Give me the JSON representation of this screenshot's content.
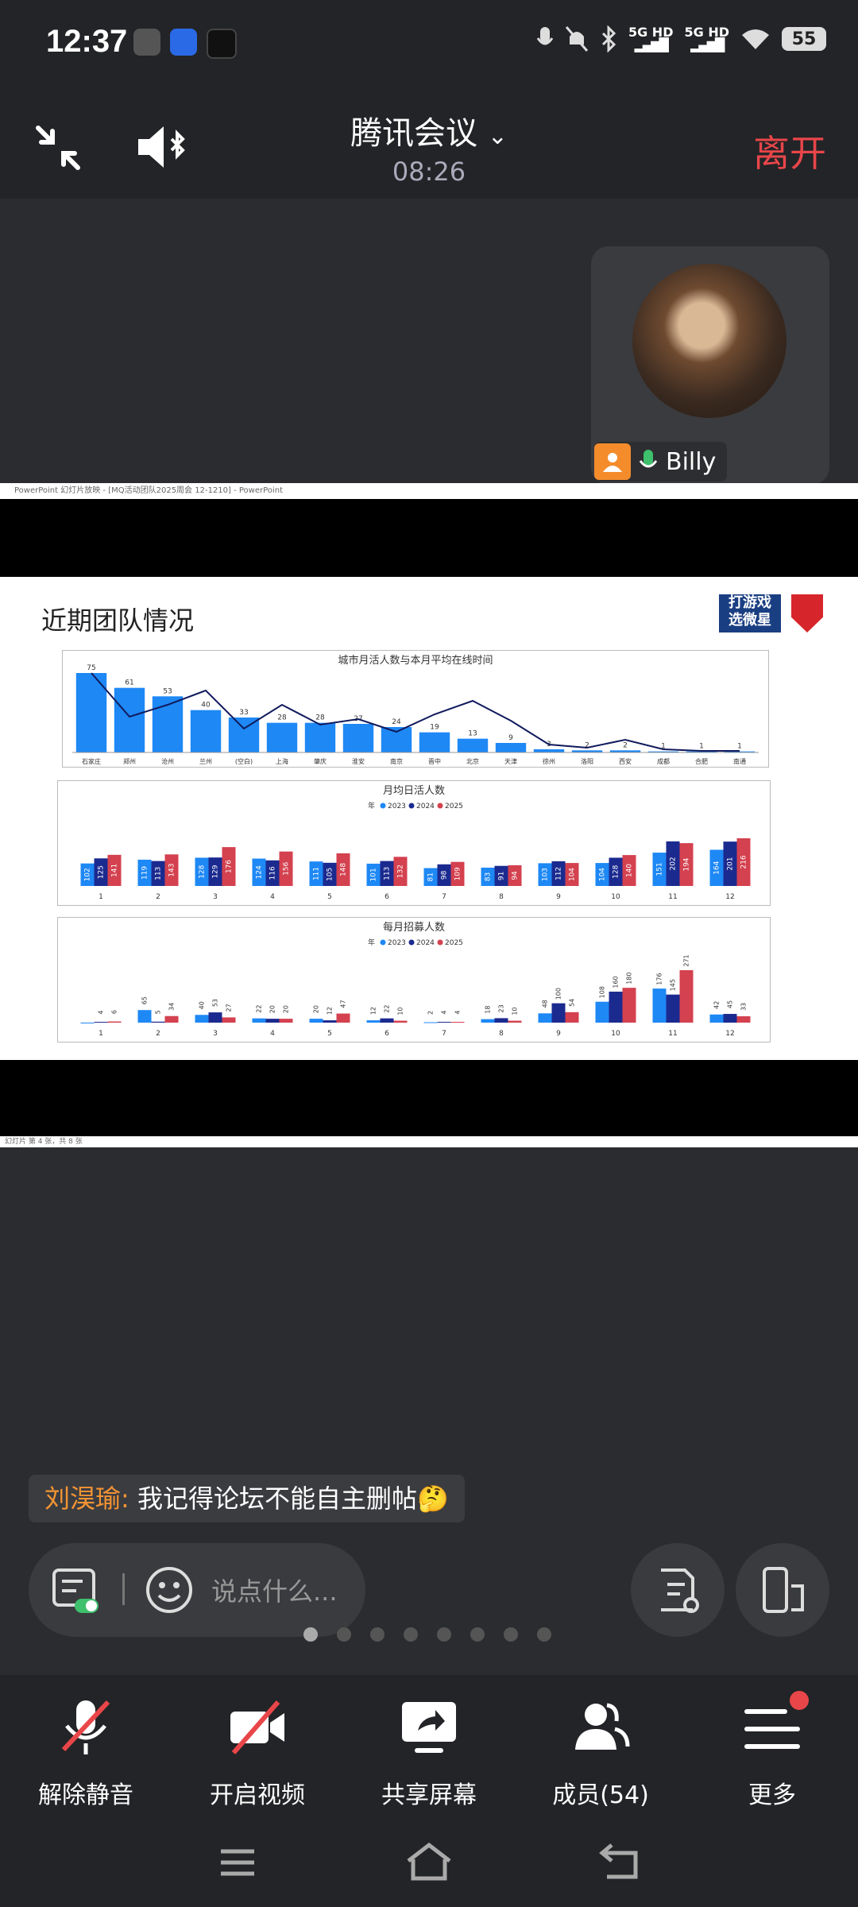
{
  "status_bar": {
    "time": "12:37",
    "network_1": "5G HD",
    "network_2": "5G HD",
    "battery": "55"
  },
  "header": {
    "meeting_title": "腾讯会议",
    "elapsed": "08:26",
    "leave_label": "离开"
  },
  "participant_tile": {
    "name": "Billy"
  },
  "shared_screen": {
    "window_title": "PowerPoint 幻灯片放映 - [MQ活动团队2025周会 12-1210] - PowerPoint",
    "status_text": "幻灯片 第 4 张，共 8 张",
    "slide": {
      "title": "近期团队情况",
      "logo_text_1": "打游戏",
      "logo_text_2": "选微星"
    }
  },
  "chart_data": [
    {
      "type": "bar",
      "title": "城市月活人数与本月平均在线时间",
      "categories": [
        "石家庄",
        "郑州",
        "沧州",
        "兰州",
        "(空白)",
        "上海",
        "肇庆",
        "淮安",
        "南京",
        "晋中",
        "北京",
        "天津",
        "徐州",
        "洛阳",
        "西安",
        "成都",
        "合肥",
        "南通"
      ],
      "series": [
        {
          "values": [
            75,
            61,
            53,
            40,
            33,
            28,
            28,
            27,
            24,
            19,
            13,
            9,
            3,
            2,
            2,
            1,
            1,
            1
          ]
        }
      ],
      "line_overlay": true
    },
    {
      "type": "bar",
      "title": "月均日活人数",
      "legend_label": "年",
      "categories": [
        "1",
        "2",
        "3",
        "4",
        "5",
        "6",
        "7",
        "8",
        "9",
        "10",
        "11",
        "12"
      ],
      "series": [
        {
          "name": "2023",
          "values": [
            102,
            119,
            128,
            124,
            111,
            101,
            81,
            83,
            103,
            104,
            151,
            164
          ]
        },
        {
          "name": "2024",
          "values": [
            125,
            113,
            129,
            116,
            105,
            113,
            98,
            91,
            112,
            128,
            202,
            201
          ]
        },
        {
          "name": "2025",
          "values": [
            141,
            143,
            176,
            156,
            148,
            132,
            109,
            94,
            104,
            140,
            194,
            216
          ]
        }
      ]
    },
    {
      "type": "bar",
      "title": "每月招募人数",
      "legend_label": "年",
      "categories": [
        "1",
        "2",
        "3",
        "4",
        "5",
        "6",
        "7",
        "8",
        "9",
        "10",
        "11",
        "12"
      ],
      "series": [
        {
          "name": "2023",
          "values": [
            0,
            65,
            40,
            22,
            20,
            12,
            2,
            18,
            48,
            108,
            176,
            42
          ]
        },
        {
          "name": "2024",
          "values": [
            4,
            5,
            53,
            20,
            12,
            22,
            4,
            23,
            100,
            160,
            145,
            45
          ]
        },
        {
          "name": "2025",
          "values": [
            6,
            34,
            27,
            20,
            47,
            10,
            4,
            10,
            54,
            180,
            271,
            33
          ]
        }
      ]
    }
  ],
  "chat": {
    "sender": "刘淏瑜:",
    "message": "我记得论坛不能自主删帖🤔"
  },
  "input": {
    "placeholder": "说点什么..."
  },
  "toolbar": {
    "unmute": "解除静音",
    "video": "开启视频",
    "share": "共享屏幕",
    "members": "成员(54)",
    "more": "更多"
  },
  "colors": {
    "series_2023": "#1e88f5",
    "series_2024": "#1b2a8f",
    "series_2025": "#d4414f",
    "leave_red": "#e9464a",
    "chat_name": "#f49433"
  }
}
